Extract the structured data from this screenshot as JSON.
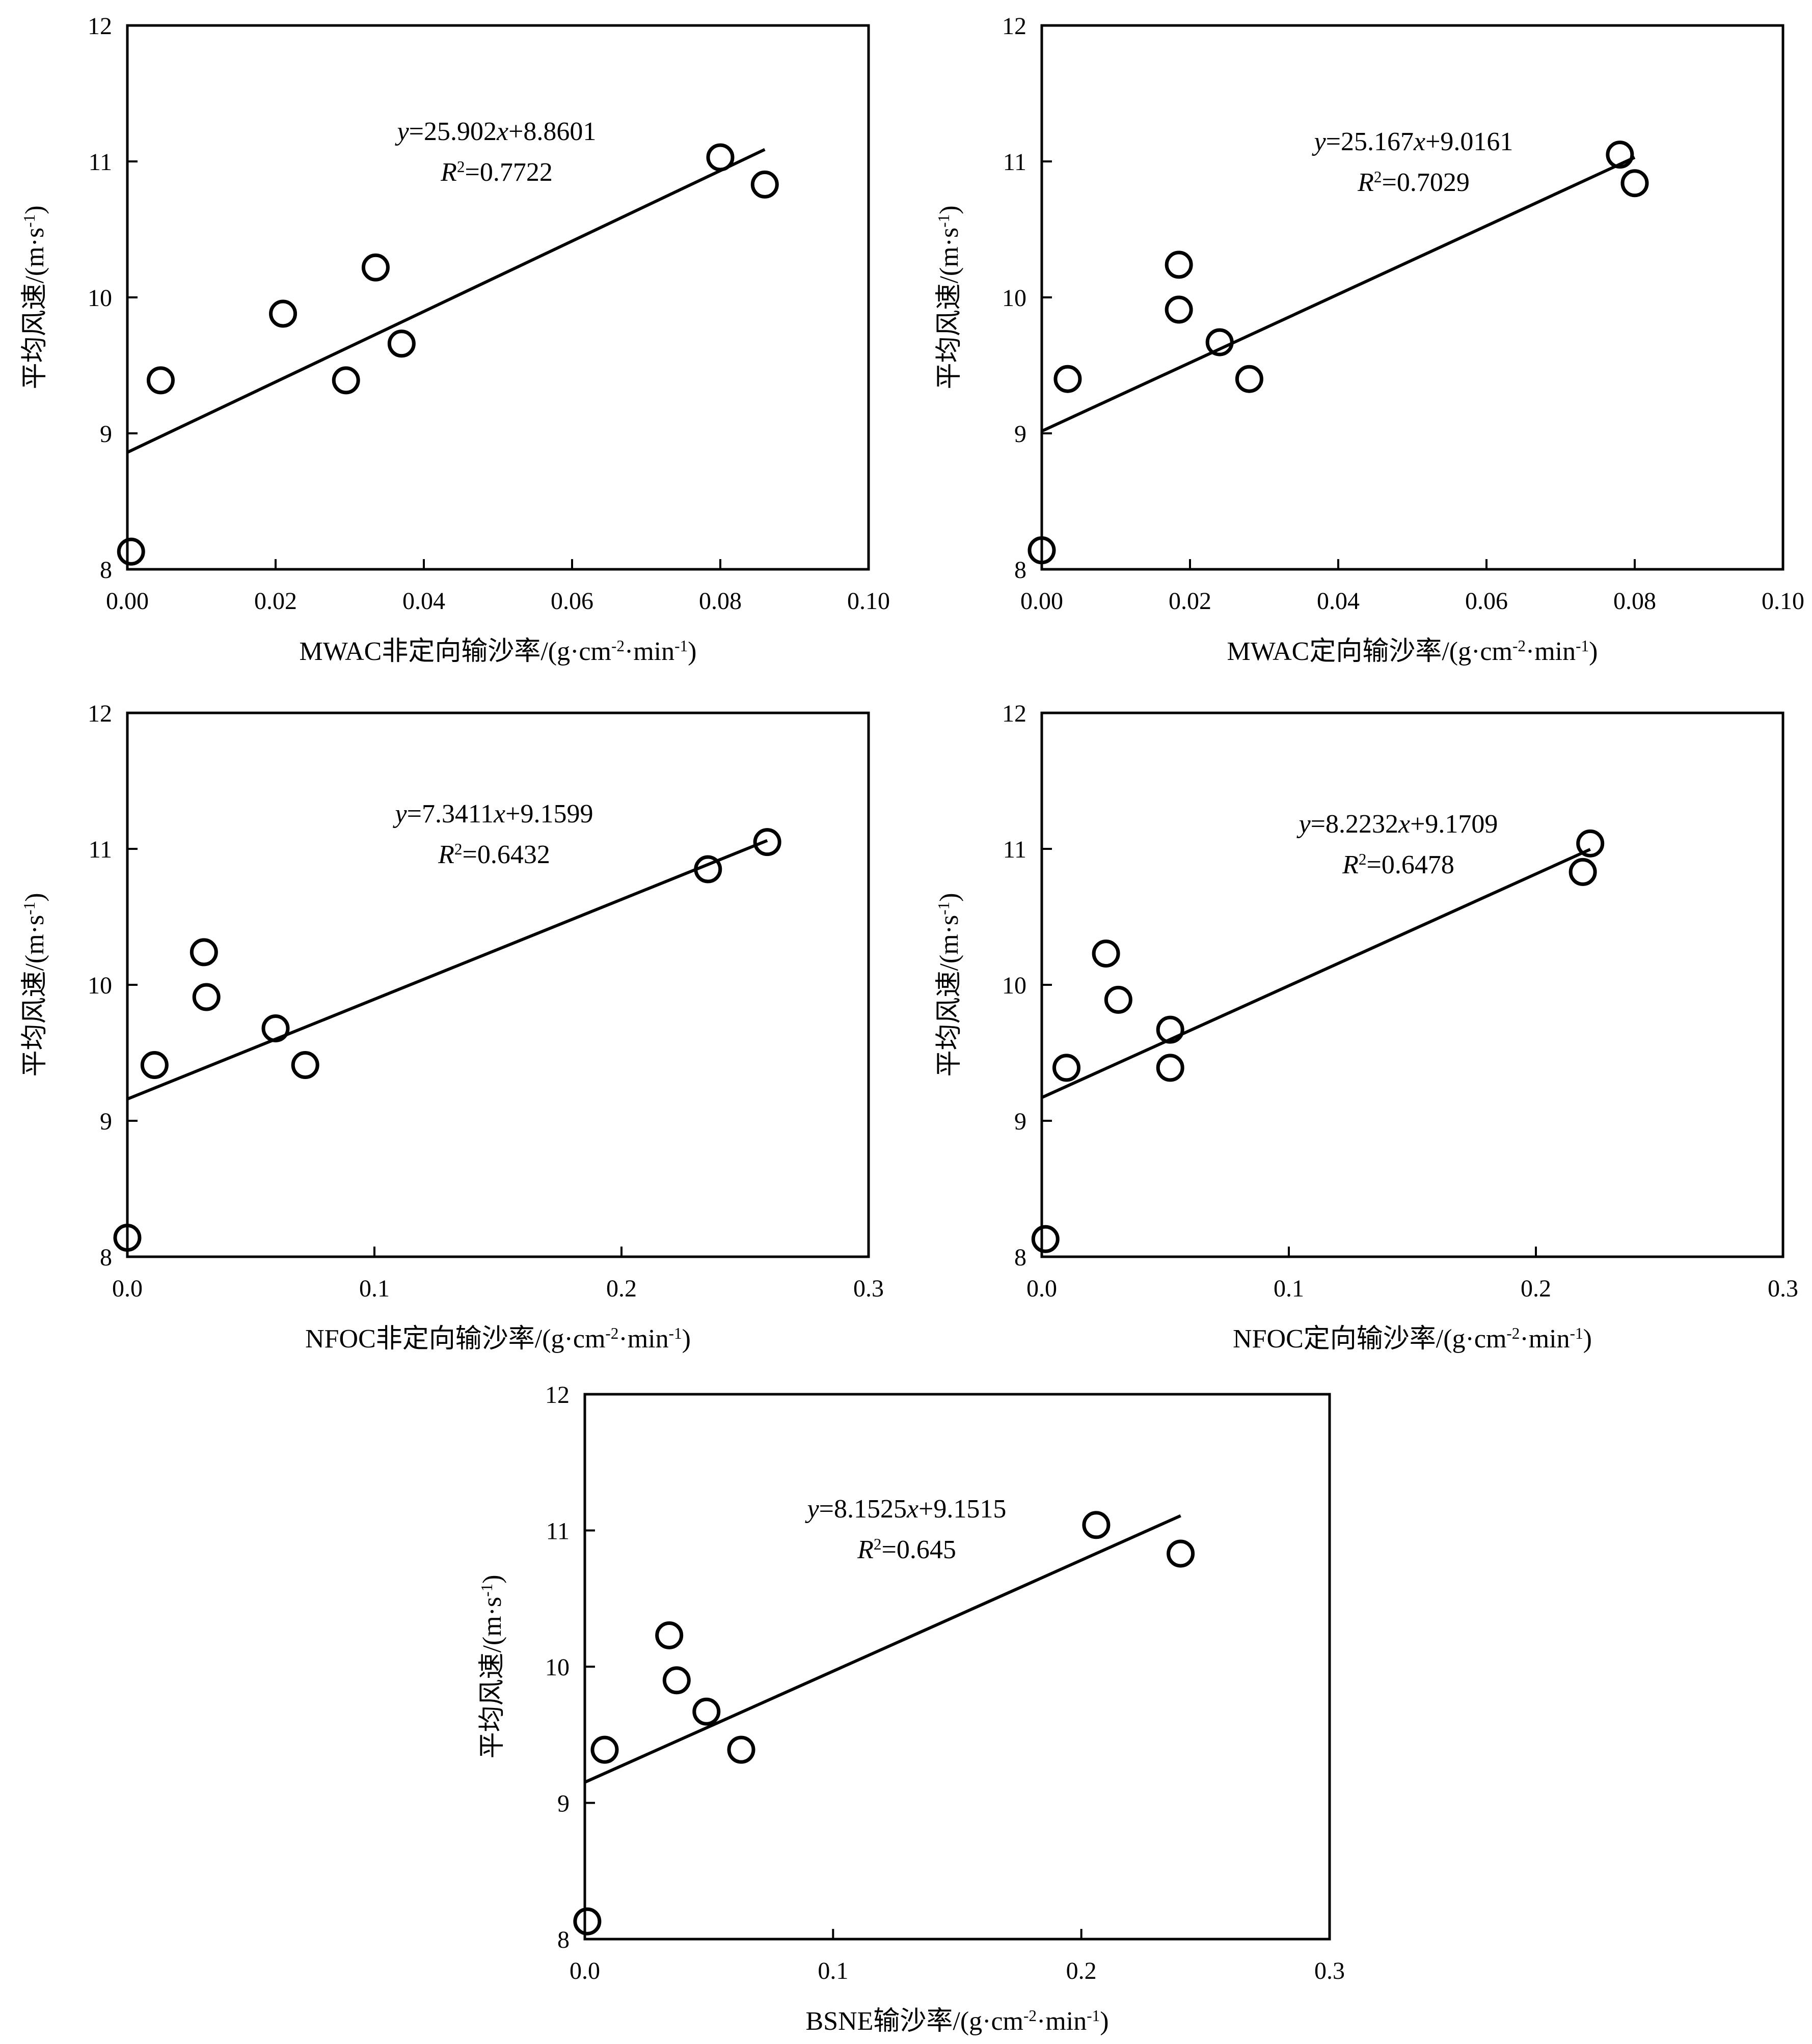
{
  "chart_data": [
    {
      "type": "scatter",
      "xlabel": "MWAC非定向输沙率/(g·cm-2·min-1)",
      "ylabel": "平均风速/(m·s-1)",
      "xlim": [
        0,
        0.1
      ],
      "ylim": [
        8,
        12
      ],
      "xticks": [
        "0.00",
        "0.02",
        "0.04",
        "0.06",
        "0.08",
        "0.10"
      ],
      "yticks": [
        "8",
        "9",
        "10",
        "11",
        "12"
      ],
      "equation": "y=25.902x+8.8601",
      "r2": "R2=0.7722",
      "points": [
        {
          "x": 0.0005,
          "y": 8.13
        },
        {
          "x": 0.0045,
          "y": 9.39
        },
        {
          "x": 0.021,
          "y": 9.88
        },
        {
          "x": 0.0295,
          "y": 9.39
        },
        {
          "x": 0.0335,
          "y": 10.22
        },
        {
          "x": 0.037,
          "y": 9.66
        },
        {
          "x": 0.08,
          "y": 11.03
        },
        {
          "x": 0.086,
          "y": 10.83
        }
      ],
      "fit": {
        "slope": 25.902,
        "intercept": 8.8601,
        "x_range": [
          0,
          0.086
        ]
      }
    },
    {
      "type": "scatter",
      "xlabel": "MWAC定向输沙率/(g·cm-2·min-1)",
      "ylabel": "平均风速/(m·s-1)",
      "xlim": [
        0,
        0.1
      ],
      "ylim": [
        8,
        12
      ],
      "xticks": [
        "0.00",
        "0.02",
        "0.04",
        "0.06",
        "0.08",
        "0.10"
      ],
      "yticks": [
        "8",
        "9",
        "10",
        "11",
        "12"
      ],
      "equation": "y=25.167x+9.0161",
      "r2": "R2=0.7029",
      "points": [
        {
          "x": 0.0,
          "y": 8.14
        },
        {
          "x": 0.0035,
          "y": 9.4
        },
        {
          "x": 0.0185,
          "y": 10.24
        },
        {
          "x": 0.0185,
          "y": 9.91
        },
        {
          "x": 0.024,
          "y": 9.67
        },
        {
          "x": 0.028,
          "y": 9.4
        },
        {
          "x": 0.078,
          "y": 11.05
        },
        {
          "x": 0.08,
          "y": 10.84
        }
      ],
      "fit": {
        "slope": 25.167,
        "intercept": 9.0161,
        "x_range": [
          0,
          0.08
        ]
      }
    },
    {
      "type": "scatter",
      "xlabel": "NFOC非定向输沙率/(g·cm-2·min-1)",
      "ylabel": "平均风速/(m·s-1)",
      "xlim": [
        0,
        0.3
      ],
      "ylim": [
        8,
        12
      ],
      "xticks": [
        "0.0",
        "0.1",
        "0.2",
        "0.3"
      ],
      "yticks": [
        "8",
        "9",
        "10",
        "11",
        "12"
      ],
      "equation": "y=7.3411x+9.1599",
      "r2": "R2=0.6432",
      "points": [
        {
          "x": 0.0,
          "y": 8.14
        },
        {
          "x": 0.011,
          "y": 9.41
        },
        {
          "x": 0.031,
          "y": 10.24
        },
        {
          "x": 0.032,
          "y": 9.91
        },
        {
          "x": 0.06,
          "y": 9.68
        },
        {
          "x": 0.072,
          "y": 9.41
        },
        {
          "x": 0.235,
          "y": 10.85
        },
        {
          "x": 0.259,
          "y": 11.05
        }
      ],
      "fit": {
        "slope": 7.3411,
        "intercept": 9.1599,
        "x_range": [
          0,
          0.259
        ]
      }
    },
    {
      "type": "scatter",
      "xlabel": "NFOC定向输沙率/(g·cm-2·min-1)",
      "ylabel": "平均风速/(m·s-1)",
      "xlim": [
        0,
        0.3
      ],
      "ylim": [
        8,
        12
      ],
      "xticks": [
        "0.0",
        "0.1",
        "0.2",
        "0.3"
      ],
      "yticks": [
        "8",
        "9",
        "10",
        "11",
        "12"
      ],
      "equation": "y=8.2232x+9.1709",
      "r2": "R2=0.6478",
      "points": [
        {
          "x": 0.0015,
          "y": 8.13
        },
        {
          "x": 0.01,
          "y": 9.39
        },
        {
          "x": 0.026,
          "y": 10.23
        },
        {
          "x": 0.031,
          "y": 9.89
        },
        {
          "x": 0.052,
          "y": 9.67
        },
        {
          "x": 0.052,
          "y": 9.39
        },
        {
          "x": 0.219,
          "y": 10.83
        },
        {
          "x": 0.222,
          "y": 11.04
        }
      ],
      "fit": {
        "slope": 8.2232,
        "intercept": 9.1709,
        "x_range": [
          0,
          0.222
        ]
      }
    },
    {
      "type": "scatter",
      "xlabel": "BSNE输沙率/(g·cm-2·min-1)",
      "ylabel": "平均风速/(m·s-1)",
      "xlim": [
        0,
        0.3
      ],
      "ylim": [
        8,
        12
      ],
      "xticks": [
        "0.0",
        "0.1",
        "0.2",
        "0.3"
      ],
      "yticks": [
        "8",
        "9",
        "10",
        "11",
        "12"
      ],
      "equation": "y=8.1525x+9.1515",
      "r2": "R2=0.645",
      "points": [
        {
          "x": 0.001,
          "y": 8.13
        },
        {
          "x": 0.008,
          "y": 9.39
        },
        {
          "x": 0.034,
          "y": 10.23
        },
        {
          "x": 0.037,
          "y": 9.9
        },
        {
          "x": 0.049,
          "y": 9.67
        },
        {
          "x": 0.063,
          "y": 9.39
        },
        {
          "x": 0.206,
          "y": 11.04
        },
        {
          "x": 0.24,
          "y": 10.83
        }
      ],
      "fit": {
        "slope": 8.1525,
        "intercept": 9.1515,
        "x_range": [
          0,
          0.24
        ]
      }
    }
  ]
}
